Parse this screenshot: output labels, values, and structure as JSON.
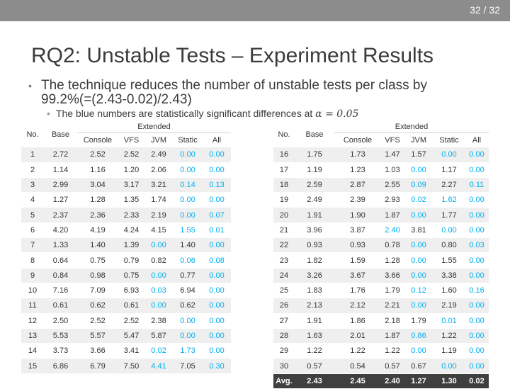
{
  "page_number": "32 / 32",
  "slide": {
    "title": "RQ2: Unstable Tests – Experiment Results",
    "bullet_main": "The technique reduces the number of unstable tests per class by 99.2%(=(2.43-0.02)/2.43)",
    "bullet_sub": "The blue numbers are statistically significant differences at",
    "bullet_sub_math": "α = 0.05"
  },
  "table_header": {
    "no": "No.",
    "base": "Base",
    "extended": "Extended",
    "cols": [
      "Console",
      "VFS",
      "JVM",
      "Static",
      "All"
    ]
  },
  "colors": {
    "significant": "#00b0f0",
    "topbar": "#8c8c8c",
    "avg_row": "#3f3f3f"
  },
  "left_rows": [
    {
      "no": "1",
      "base": "2.72",
      "console": "2.52",
      "vfs": "2.52",
      "jvm": "2.49",
      "static": "0.00",
      "all": "0.00",
      "blue": [
        "static",
        "all"
      ]
    },
    {
      "no": "2",
      "base": "1.14",
      "console": "1.16",
      "vfs": "1.20",
      "jvm": "2.06",
      "static": "0.00",
      "all": "0.00",
      "blue": [
        "static",
        "all"
      ]
    },
    {
      "no": "3",
      "base": "2.99",
      "console": "3.04",
      "vfs": "3.17",
      "jvm": "3.21",
      "static": "0.14",
      "all": "0.13",
      "blue": [
        "static",
        "all"
      ]
    },
    {
      "no": "4",
      "base": "1.27",
      "console": "1.28",
      "vfs": "1.35",
      "jvm": "1.74",
      "static": "0.00",
      "all": "0.00",
      "blue": [
        "static",
        "all"
      ]
    },
    {
      "no": "5",
      "base": "2.37",
      "console": "2.36",
      "vfs": "2.33",
      "jvm": "2.19",
      "static": "0.00",
      "all": "0.07",
      "blue": [
        "static",
        "all"
      ]
    },
    {
      "no": "6",
      "base": "4.20",
      "console": "4.19",
      "vfs": "4.24",
      "jvm": "4.15",
      "static": "1.55",
      "all": "0.01",
      "blue": [
        "static",
        "all"
      ]
    },
    {
      "no": "7",
      "base": "1.33",
      "console": "1.40",
      "vfs": "1.39",
      "jvm": "0.00",
      "static": "1.40",
      "all": "0.00",
      "blue": [
        "jvm",
        "all"
      ]
    },
    {
      "no": "8",
      "base": "0.64",
      "console": "0.75",
      "vfs": "0.79",
      "jvm": "0.82",
      "static": "0.06",
      "all": "0.08",
      "blue": [
        "static",
        "all"
      ]
    },
    {
      "no": "9",
      "base": "0.84",
      "console": "0.98",
      "vfs": "0.75",
      "jvm": "0.00",
      "static": "0.77",
      "all": "0.00",
      "blue": [
        "jvm",
        "all"
      ]
    },
    {
      "no": "10",
      "base": "7.16",
      "console": "7.09",
      "vfs": "6.93",
      "jvm": "0.03",
      "static": "6.94",
      "all": "0.00",
      "blue": [
        "jvm",
        "all"
      ]
    },
    {
      "no": "11",
      "base": "0.61",
      "console": "0.62",
      "vfs": "0.61",
      "jvm": "0.00",
      "static": "0.62",
      "all": "0.00",
      "blue": [
        "jvm",
        "all"
      ]
    },
    {
      "no": "12",
      "base": "2.50",
      "console": "2.52",
      "vfs": "2.52",
      "jvm": "2.38",
      "static": "0.00",
      "all": "0.00",
      "blue": [
        "static",
        "all"
      ]
    },
    {
      "no": "13",
      "base": "5.53",
      "console": "5.57",
      "vfs": "5.47",
      "jvm": "5.87",
      "static": "0.00",
      "all": "0.00",
      "blue": [
        "static",
        "all"
      ]
    },
    {
      "no": "14",
      "base": "3.73",
      "console": "3.66",
      "vfs": "3.41",
      "jvm": "0.02",
      "static": "1.73",
      "all": "0.00",
      "blue": [
        "jvm",
        "static",
        "all"
      ]
    },
    {
      "no": "15",
      "base": "6.86",
      "console": "6.79",
      "vfs": "7.50",
      "jvm": "4.41",
      "static": "7.05",
      "all": "0.30",
      "blue": [
        "jvm",
        "all"
      ]
    }
  ],
  "right_rows": [
    {
      "no": "16",
      "base": "1.75",
      "console": "1.73",
      "vfs": "1.47",
      "jvm": "1.57",
      "static": "0.00",
      "all": "0.00",
      "blue": [
        "static",
        "all"
      ]
    },
    {
      "no": "17",
      "base": "1.19",
      "console": "1.23",
      "vfs": "1.03",
      "jvm": "0.00",
      "static": "1.17",
      "all": "0.00",
      "blue": [
        "jvm",
        "all"
      ]
    },
    {
      "no": "18",
      "base": "2.59",
      "console": "2.87",
      "vfs": "2.55",
      "jvm": "0.09",
      "static": "2.27",
      "all": "0.11",
      "blue": [
        "jvm",
        "all"
      ]
    },
    {
      "no": "19",
      "base": "2.49",
      "console": "2.39",
      "vfs": "2.93",
      "jvm": "0.02",
      "static": "1.62",
      "all": "0.00",
      "blue": [
        "jvm",
        "static",
        "all"
      ]
    },
    {
      "no": "20",
      "base": "1.91",
      "console": "1.90",
      "vfs": "1.87",
      "jvm": "0.00",
      "static": "1.77",
      "all": "0.00",
      "blue": [
        "jvm",
        "all"
      ]
    },
    {
      "no": "21",
      "base": "3.96",
      "console": "3.87",
      "vfs": "2.40",
      "jvm": "3.81",
      "static": "0.00",
      "all": "0.00",
      "blue": [
        "vfs",
        "static",
        "all"
      ]
    },
    {
      "no": "22",
      "base": "0.93",
      "console": "0.93",
      "vfs": "0.78",
      "jvm": "0.00",
      "static": "0.80",
      "all": "0.03",
      "blue": [
        "jvm",
        "all"
      ]
    },
    {
      "no": "23",
      "base": "1.82",
      "console": "1.59",
      "vfs": "1.28",
      "jvm": "0.00",
      "static": "1.55",
      "all": "0.00",
      "blue": [
        "jvm",
        "all"
      ]
    },
    {
      "no": "24",
      "base": "3.26",
      "console": "3.67",
      "vfs": "3.66",
      "jvm": "0.00",
      "static": "3.38",
      "all": "0.00",
      "blue": [
        "jvm",
        "all"
      ]
    },
    {
      "no": "25",
      "base": "1.83",
      "console": "1.76",
      "vfs": "1.79",
      "jvm": "0.12",
      "static": "1.60",
      "all": "0.16",
      "blue": [
        "jvm",
        "all"
      ]
    },
    {
      "no": "26",
      "base": "2.13",
      "console": "2.12",
      "vfs": "2.21",
      "jvm": "0.00",
      "static": "2.19",
      "all": "0.00",
      "blue": [
        "jvm",
        "all"
      ]
    },
    {
      "no": "27",
      "base": "1.91",
      "console": "1.86",
      "vfs": "2.18",
      "jvm": "1.79",
      "static": "0.01",
      "all": "0.00",
      "blue": [
        "static",
        "all"
      ]
    },
    {
      "no": "28",
      "base": "1.63",
      "console": "2.01",
      "vfs": "1.87",
      "jvm": "0.86",
      "static": "1.22",
      "all": "0.00",
      "blue": [
        "jvm",
        "all"
      ]
    },
    {
      "no": "29",
      "base": "1.22",
      "console": "1.22",
      "vfs": "1.22",
      "jvm": "0.00",
      "static": "1.19",
      "all": "0.00",
      "blue": [
        "jvm",
        "all"
      ]
    },
    {
      "no": "30",
      "base": "0.57",
      "console": "0.54",
      "vfs": "0.57",
      "jvm": "0.67",
      "static": "0.00",
      "all": "0.00",
      "blue": [
        "static",
        "all"
      ]
    }
  ],
  "avg_row": {
    "no": "Avg.",
    "base": "2.43",
    "console": "2.45",
    "vfs": "2.40",
    "jvm": "1.27",
    "static": "1.30",
    "all": "0.02"
  }
}
